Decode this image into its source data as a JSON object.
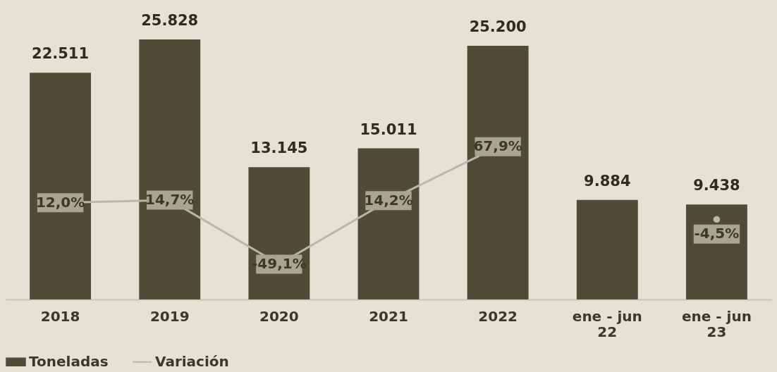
{
  "chart_data": {
    "type": "bar",
    "categories": [
      "2018",
      "2019",
      "2020",
      "2021",
      "2022",
      "ene - jun 22",
      "ene - jun 23"
    ],
    "tick_labels": "x",
    "legend": "bottom",
    "series": [
      {
        "name": "Toneladas",
        "type": "bar",
        "color": "#4f4b36",
        "values": [
          22511,
          25828,
          13145,
          15011,
          25200,
          9884,
          9438
        ],
        "value_labels": [
          "22.511",
          "25.828",
          "13.145",
          "15.011",
          "25.200",
          "9.884",
          "9.438"
        ]
      },
      {
        "name": "Variación",
        "type": "line",
        "axis": "y2",
        "color": "#b9b7ab",
        "values": [
          12.0,
          14.7,
          -49.1,
          14.2,
          67.9,
          null,
          -4.5
        ],
        "value_labels": [
          "12,0%",
          "14,7%",
          "-49,1%",
          "14,2%",
          "67,9%",
          null,
          "-4,5%"
        ]
      }
    ]
  }
}
